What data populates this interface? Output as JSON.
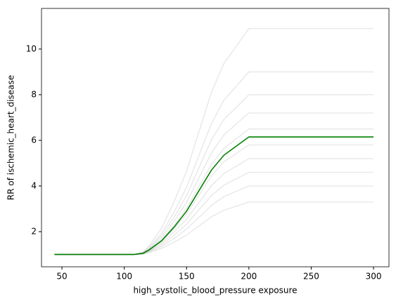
{
  "chart_data": {
    "type": "line",
    "x_label": "high_systolic_blood_pressure exposure",
    "y_label": "RR of ischemic_heart_disease",
    "x": [
      44,
      108,
      115,
      120,
      130,
      140,
      150,
      160,
      170,
      180,
      190,
      200,
      300
    ],
    "series": [
      {
        "color": "#808080",
        "values": [
          1,
          1,
          1.02,
          1.09,
          1.27,
          1.54,
          1.85,
          2.25,
          2.65,
          2.94,
          3.12,
          3.3,
          3.3
        ]
      },
      {
        "color": "#808080",
        "values": [
          1,
          1,
          1.03,
          1.12,
          1.35,
          1.7,
          2.11,
          2.63,
          3.15,
          3.54,
          3.77,
          4.0,
          4.0
        ]
      },
      {
        "color": "#808080",
        "values": [
          1,
          1,
          1.03,
          1.14,
          1.42,
          1.84,
          2.33,
          2.96,
          3.58,
          4.04,
          4.32,
          4.6,
          4.6
        ]
      },
      {
        "color": "#808080",
        "values": [
          1,
          1,
          1.04,
          1.16,
          1.49,
          1.98,
          2.55,
          3.28,
          4.02,
          4.55,
          4.87,
          5.2,
          5.2
        ]
      },
      {
        "color": "#808080",
        "values": [
          1,
          1,
          1.05,
          1.19,
          1.56,
          2.12,
          2.77,
          3.61,
          4.45,
          5.06,
          5.43,
          5.8,
          5.8
        ]
      },
      {
        "color": "#808080",
        "values": [
          1,
          1,
          1.05,
          1.21,
          1.64,
          2.28,
          3.03,
          3.99,
          4.95,
          5.65,
          6.07,
          6.5,
          6.5
        ]
      },
      {
        "color": "#808080",
        "values": [
          1,
          1,
          1.06,
          1.24,
          1.72,
          2.44,
          3.29,
          4.37,
          5.45,
          6.24,
          6.72,
          7.2,
          7.2
        ]
      },
      {
        "color": "#808080",
        "values": [
          1,
          1,
          1.07,
          1.27,
          1.82,
          2.63,
          3.58,
          4.81,
          6.03,
          6.92,
          7.45,
          8.0,
          8.0
        ]
      },
      {
        "color": "#808080",
        "values": [
          1,
          1,
          1.08,
          1.31,
          1.93,
          2.86,
          3.95,
          5.35,
          6.74,
          7.76,
          8.38,
          9.0,
          9.0
        ]
      },
      {
        "color": "#808080",
        "values": [
          1,
          1,
          1.1,
          1.38,
          2.15,
          3.31,
          4.65,
          6.39,
          8.11,
          9.37,
          10.13,
          10.9,
          10.9
        ]
      },
      {
        "color": "#008000",
        "values": [
          1,
          1,
          1.05,
          1.2,
          1.6,
          2.2,
          2.9,
          3.8,
          4.7,
          5.35,
          5.75,
          6.15,
          6.15
        ]
      }
    ],
    "xlim": [
      33.6,
      312.4
    ],
    "xticks": [
      50,
      100,
      150,
      200,
      250,
      300
    ],
    "ylim": [
      0.46,
      11.78
    ],
    "yticks": [
      2,
      4,
      6,
      8,
      10
    ]
  }
}
